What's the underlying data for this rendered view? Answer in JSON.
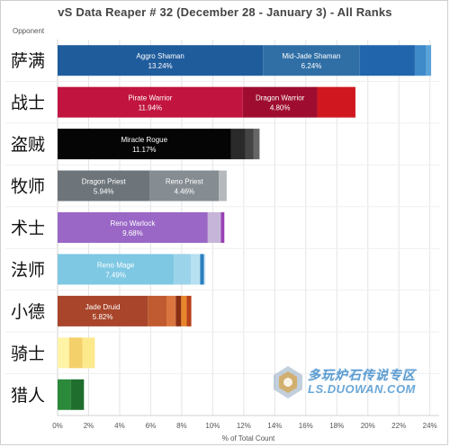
{
  "title": "vS Data Reaper # 32 (December 28 - January 3) - All Ranks",
  "column_header": "Opponent",
  "watermark": {
    "text": "多玩炉石传说专区",
    "url": "LS.DUOWAN.COM"
  },
  "chart_data": {
    "type": "bar",
    "orientation": "horizontal",
    "stacked": true,
    "title": "vS Data Reaper # 32 (December 28 - January 3) - All Ranks",
    "xlabel": "% of Total Count",
    "ylabel": "Opponent",
    "xlim": [
      0,
      24.6
    ],
    "xticks": [
      "0%",
      "2%",
      "4%",
      "6%",
      "8%",
      "10%",
      "12%",
      "14%",
      "16%",
      "18%",
      "20%",
      "22%",
      "24%"
    ],
    "grid": true,
    "categories": [
      {
        "label": "萨满",
        "segments": [
          {
            "name": "Aggro Shaman",
            "value_label": "13.24%",
            "value": 13.24,
            "color": "#1f5c9c"
          },
          {
            "name": "Mid-Jade Shaman",
            "value_label": "6.24%",
            "value": 6.24,
            "color": "#2f6fa6"
          },
          {
            "name": "",
            "value_label": "",
            "value": 3.55,
            "color": "#2165ad"
          },
          {
            "name": "",
            "value_label": "",
            "value": 0.7,
            "color": "#3f8bc9"
          },
          {
            "name": "",
            "value_label": "",
            "value": 0.35,
            "color": "#5aa3d8"
          }
        ]
      },
      {
        "label": "战士",
        "segments": [
          {
            "name": "Pirate Warrior",
            "value_label": "11.94%",
            "value": 11.94,
            "color": "#c1143e"
          },
          {
            "name": "Dragon Warrior",
            "value_label": "4.80%",
            "value": 4.8,
            "color": "#9e0d2f"
          },
          {
            "name": "",
            "value_label": "",
            "value": 2.46,
            "color": "#d0171f"
          }
        ]
      },
      {
        "label": "盗贼",
        "segments": [
          {
            "name": "Miracle Rogue",
            "value_label": "11.17%",
            "value": 11.17,
            "color": "#050505"
          },
          {
            "name": "",
            "value_label": "",
            "value": 0.95,
            "color": "#2a2a2a"
          },
          {
            "name": "",
            "value_label": "",
            "value": 0.5,
            "color": "#444444"
          },
          {
            "name": "",
            "value_label": "",
            "value": 0.4,
            "color": "#666666"
          }
        ]
      },
      {
        "label": "牧师",
        "segments": [
          {
            "name": "Dragon Priest",
            "value_label": "5.94%",
            "value": 5.94,
            "color": "#6d757b"
          },
          {
            "name": "Reno Priest",
            "value_label": "4.46%",
            "value": 4.46,
            "color": "#858c92"
          },
          {
            "name": "",
            "value_label": "",
            "value": 0.5,
            "color": "#b5b9bd"
          }
        ]
      },
      {
        "label": "术士",
        "segments": [
          {
            "name": "Reno Warlock",
            "value_label": "9.68%",
            "value": 9.68,
            "color": "#9a67c6"
          },
          {
            "name": "",
            "value_label": "",
            "value": 0.85,
            "color": "#c6b5d8"
          },
          {
            "name": "",
            "value_label": "",
            "value": 0.22,
            "color": "#9a3fb5"
          }
        ]
      },
      {
        "label": "法师",
        "segments": [
          {
            "name": "Reno Mage",
            "value_label": "7.49%",
            "value": 7.49,
            "color": "#7ec8e3"
          },
          {
            "name": "",
            "value_label": "",
            "value": 1.1,
            "color": "#9bd3ea"
          },
          {
            "name": "",
            "value_label": "",
            "value": 0.6,
            "color": "#b7e0f0"
          },
          {
            "name": "",
            "value_label": "",
            "value": 0.25,
            "color": "#2a7fbf"
          },
          {
            "name": "",
            "value_label": "",
            "value": 0.1,
            "color": "#cfe9f5"
          }
        ]
      },
      {
        "label": "小德",
        "segments": [
          {
            "name": "Jade Druid",
            "value_label": "5.82%",
            "value": 5.82,
            "color": "#a8452a"
          },
          {
            "name": "",
            "value_label": "",
            "value": 1.2,
            "color": "#c05a30"
          },
          {
            "name": "",
            "value_label": "",
            "value": 0.6,
            "color": "#d9763f"
          },
          {
            "name": "",
            "value_label": "",
            "value": 0.35,
            "color": "#8a2e12"
          },
          {
            "name": "",
            "value_label": "",
            "value": 0.35,
            "color": "#e8862c"
          },
          {
            "name": "",
            "value_label": "",
            "value": 0.3,
            "color": "#b7401a"
          }
        ]
      },
      {
        "label": "骑士",
        "segments": [
          {
            "name": "",
            "value_label": "",
            "value": 0.75,
            "color": "#fff3a6"
          },
          {
            "name": "",
            "value_label": "",
            "value": 0.85,
            "color": "#f4d06a"
          },
          {
            "name": "",
            "value_label": "",
            "value": 0.8,
            "color": "#fbe98c"
          }
        ]
      },
      {
        "label": "猎人",
        "segments": [
          {
            "name": "",
            "value_label": "",
            "value": 0.85,
            "color": "#2a8a3a"
          },
          {
            "name": "",
            "value_label": "",
            "value": 0.85,
            "color": "#1f6e2d"
          }
        ]
      }
    ]
  }
}
